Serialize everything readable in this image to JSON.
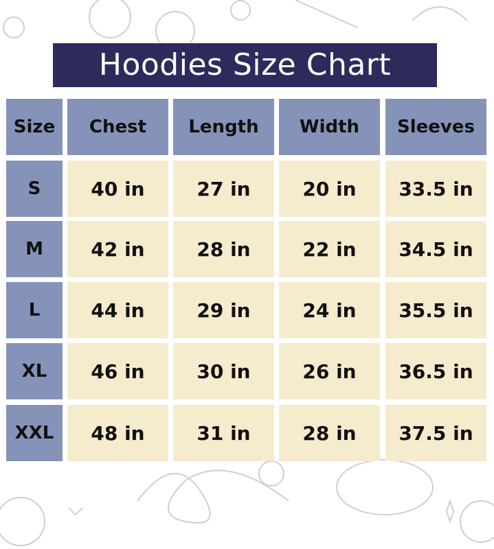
{
  "title": "Hoodies Size Chart",
  "colors": {
    "title_bg": "#2c2b5c",
    "header_bg": "#8593b9",
    "cell_bg": "#f5ebcd"
  },
  "table": {
    "headers": [
      "Size",
      "Chest",
      "Length",
      "Width",
      "Sleeves"
    ],
    "rows": [
      [
        "S",
        "40 in",
        "27 in",
        "20 in",
        "33.5 in"
      ],
      [
        "M",
        "42 in",
        "28 in",
        "22 in",
        "34.5 in"
      ],
      [
        "L",
        "44 in",
        "29 in",
        "24 in",
        "35.5 in"
      ],
      [
        "XL",
        "46 in",
        "30 in",
        "26 in",
        "36.5 in"
      ],
      [
        "XXL",
        "48 in",
        "31 in",
        "28 in",
        "37.5 in"
      ]
    ]
  }
}
